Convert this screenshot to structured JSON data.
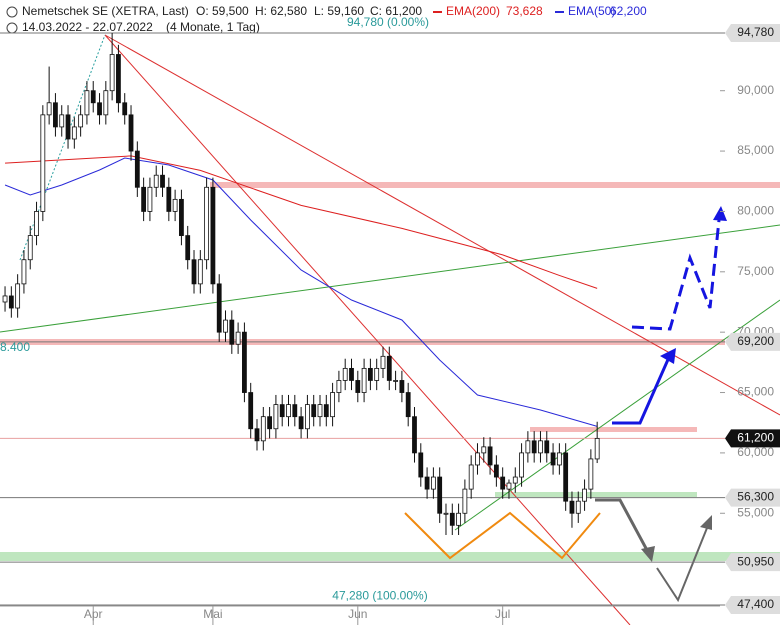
{
  "chart_data": {
    "type": "candlestick",
    "title": "Nemetschek SE (XETRA, Last)",
    "ohlc_labels": [
      "O: 59,500",
      "H: 62,580",
      "L: 59,160",
      "C: 61,200"
    ],
    "date_range": "14.03.2022 - 22.07.2022",
    "period": "(4 Monate, 1 Tag)",
    "xlim": [
      -0.8,
      113.5
    ],
    "ylim": [
      45745,
      97513
    ],
    "xticks": [
      {
        "value": 14,
        "label": "Apr"
      },
      {
        "value": 33,
        "label": "Mai"
      },
      {
        "value": 56,
        "label": "Jun"
      },
      {
        "value": 79,
        "label": "Jul"
      }
    ],
    "yticks": [
      {
        "value": 90000,
        "label": "90,000"
      },
      {
        "value": 85000,
        "label": "85,000"
      },
      {
        "value": 80000,
        "label": "80,000"
      },
      {
        "value": 75000,
        "label": "75,000"
      },
      {
        "value": 70000,
        "label": "70,000"
      },
      {
        "value": 65000,
        "label": "65,000"
      },
      {
        "value": 60000,
        "label": "60,000"
      },
      {
        "value": 55000,
        "label": "55,000"
      }
    ],
    "levels": [
      {
        "value": 94780,
        "label": "94,780"
      },
      {
        "value": 69200,
        "label": "69,200"
      },
      {
        "value": 61200,
        "label": "61,200",
        "highlight": true
      },
      {
        "value": 56300,
        "label": "56,300"
      },
      {
        "value": 50950,
        "label": "50,950"
      },
      {
        "value": 47400,
        "label": "47,400"
      }
    ],
    "fib_labels": [
      {
        "value": 94780,
        "label": "94,780 (0.00%)"
      },
      {
        "value": 47280,
        "label": "47,280 (100.00%)"
      }
    ],
    "left_label": "8.400",
    "candles": [
      [
        72500,
        73800,
        71700,
        73000
      ],
      [
        73000,
        73800,
        71200,
        72000
      ],
      [
        72000,
        74800,
        71200,
        74000
      ],
      [
        74000,
        76800,
        73200,
        76000
      ],
      [
        76000,
        78800,
        75200,
        78000
      ],
      [
        78000,
        80800,
        77200,
        80000
      ],
      [
        80000,
        88800,
        79200,
        88000
      ],
      [
        88000,
        92000,
        87200,
        89000
      ],
      [
        89000,
        89800,
        86200,
        87000
      ],
      [
        87000,
        88800,
        86200,
        88000
      ],
      [
        88000,
        88800,
        85200,
        86000
      ],
      [
        86000,
        87800,
        85200,
        87000
      ],
      [
        87000,
        88800,
        86200,
        88000
      ],
      [
        88000,
        90800,
        87200,
        90000
      ],
      [
        90000,
        90800,
        88200,
        89000
      ],
      [
        89000,
        89800,
        87200,
        88000
      ],
      [
        88000,
        90800,
        87200,
        90000
      ],
      [
        90000,
        94780,
        89200,
        93000
      ],
      [
        93000,
        93800,
        88200,
        89000
      ],
      [
        89000,
        89800,
        87200,
        88000
      ],
      [
        88000,
        88800,
        84200,
        85000
      ],
      [
        85000,
        85800,
        81200,
        82000
      ],
      [
        82000,
        82800,
        79200,
        80000
      ],
      [
        80000,
        82800,
        79200,
        82000
      ],
      [
        82000,
        83800,
        81200,
        83000
      ],
      [
        83000,
        83800,
        81200,
        82000
      ],
      [
        82000,
        82800,
        79200,
        80000
      ],
      [
        80000,
        81800,
        79200,
        81000
      ],
      [
        81000,
        81800,
        77200,
        78000
      ],
      [
        78000,
        78800,
        75200,
        76000
      ],
      [
        76000,
        76800,
        73200,
        74000
      ],
      [
        74000,
        76800,
        73200,
        76000
      ],
      [
        76000,
        82800,
        75200,
        82000
      ],
      [
        82000,
        82800,
        73200,
        74000
      ],
      [
        74000,
        74800,
        69200,
        70000
      ],
      [
        70000,
        71800,
        69200,
        71000
      ],
      [
        71000,
        71800,
        68200,
        69000
      ],
      [
        69000,
        70800,
        68200,
        70000
      ],
      [
        70000,
        70800,
        64200,
        65000
      ],
      [
        65000,
        65800,
        61200,
        62000
      ],
      [
        62000,
        62800,
        60200,
        61000
      ],
      [
        61000,
        63800,
        60200,
        63000
      ],
      [
        63000,
        63800,
        61200,
        62000
      ],
      [
        62000,
        64800,
        61200,
        64000
      ],
      [
        64000,
        64800,
        62200,
        63000
      ],
      [
        63000,
        64800,
        62200,
        64000
      ],
      [
        64000,
        64800,
        62200,
        63000
      ],
      [
        63000,
        63800,
        61200,
        62000
      ],
      [
        62000,
        64800,
        61200,
        64000
      ],
      [
        64000,
        64800,
        62200,
        63000
      ],
      [
        63000,
        64800,
        62200,
        64000
      ],
      [
        64000,
        64800,
        62200,
        63000
      ],
      [
        63000,
        65800,
        62200,
        65000
      ],
      [
        65000,
        66800,
        64200,
        66000
      ],
      [
        66000,
        67800,
        65200,
        67000
      ],
      [
        67000,
        67800,
        65200,
        66000
      ],
      [
        66000,
        66800,
        64200,
        65000
      ],
      [
        65000,
        67800,
        64200,
        67000
      ],
      [
        67000,
        67800,
        65200,
        66000
      ],
      [
        66000,
        67800,
        65200,
        67000
      ],
      [
        67000,
        68800,
        66200,
        68000
      ],
      [
        68000,
        68800,
        65200,
        66000
      ],
      [
        66000,
        66800,
        65200,
        66000
      ],
      [
        66000,
        66800,
        64200,
        65000
      ],
      [
        65000,
        65800,
        62200,
        63000
      ],
      [
        63000,
        63800,
        59200,
        60000
      ],
      [
        60000,
        60800,
        57200,
        58000
      ],
      [
        58000,
        58800,
        56200,
        57000
      ],
      [
        57000,
        58800,
        56200,
        58000
      ],
      [
        58000,
        58800,
        54200,
        55000
      ],
      [
        55000,
        55800,
        53200,
        55000
      ],
      [
        55000,
        55800,
        53200,
        54000
      ],
      [
        54000,
        55800,
        53200,
        55000
      ],
      [
        55000,
        57800,
        54200,
        57000
      ],
      [
        57000,
        59800,
        56200,
        59000
      ],
      [
        59000,
        60800,
        58200,
        60000
      ],
      [
        60000,
        61300,
        59200,
        60500
      ],
      [
        60500,
        61300,
        58200,
        59000
      ],
      [
        59000,
        59800,
        57200,
        58000
      ],
      [
        58000,
        58800,
        56200,
        57000
      ],
      [
        57000,
        57800,
        56200,
        57500
      ],
      [
        57500,
        58800,
        56700,
        58000
      ],
      [
        58000,
        60800,
        57200,
        60000
      ],
      [
        60000,
        61800,
        59200,
        61000
      ],
      [
        61000,
        61800,
        59200,
        60000
      ],
      [
        60000,
        61800,
        59200,
        61000
      ],
      [
        61000,
        61800,
        59200,
        60000
      ],
      [
        60000,
        60800,
        58200,
        59000
      ],
      [
        59000,
        60800,
        58200,
        60000
      ],
      [
        60000,
        60800,
        55200,
        56000
      ],
      [
        56000,
        56800,
        53800,
        55000
      ],
      [
        55000,
        56800,
        54200,
        56000
      ],
      [
        56000,
        57800,
        55200,
        57000
      ],
      [
        57000,
        60300,
        56200,
        59500
      ],
      [
        59500,
        62580,
        59160,
        61200
      ]
    ],
    "series": [
      {
        "name": "EMA(200)",
        "color": "#dd2020",
        "last_label": "73,628",
        "x": [
          0,
          20,
          31,
          47,
          63,
          79,
          88,
          94
        ],
        "values": [
          84000,
          84600,
          83400,
          80500,
          78600,
          76400,
          74700,
          73628
        ]
      },
      {
        "name": "EMA(50)",
        "color": "#2a2ad8",
        "last_label": "62,200",
        "x": [
          0,
          4,
          9,
          15,
          19,
          26,
          33,
          39,
          47,
          55,
          63,
          69,
          75,
          85,
          94
        ],
        "values": [
          82190,
          81362,
          82190,
          83433,
          84426,
          83847,
          82605,
          79291,
          75150,
          72665,
          71009,
          67695,
          64796,
          63554,
          62200
        ]
      }
    ]
  }
}
